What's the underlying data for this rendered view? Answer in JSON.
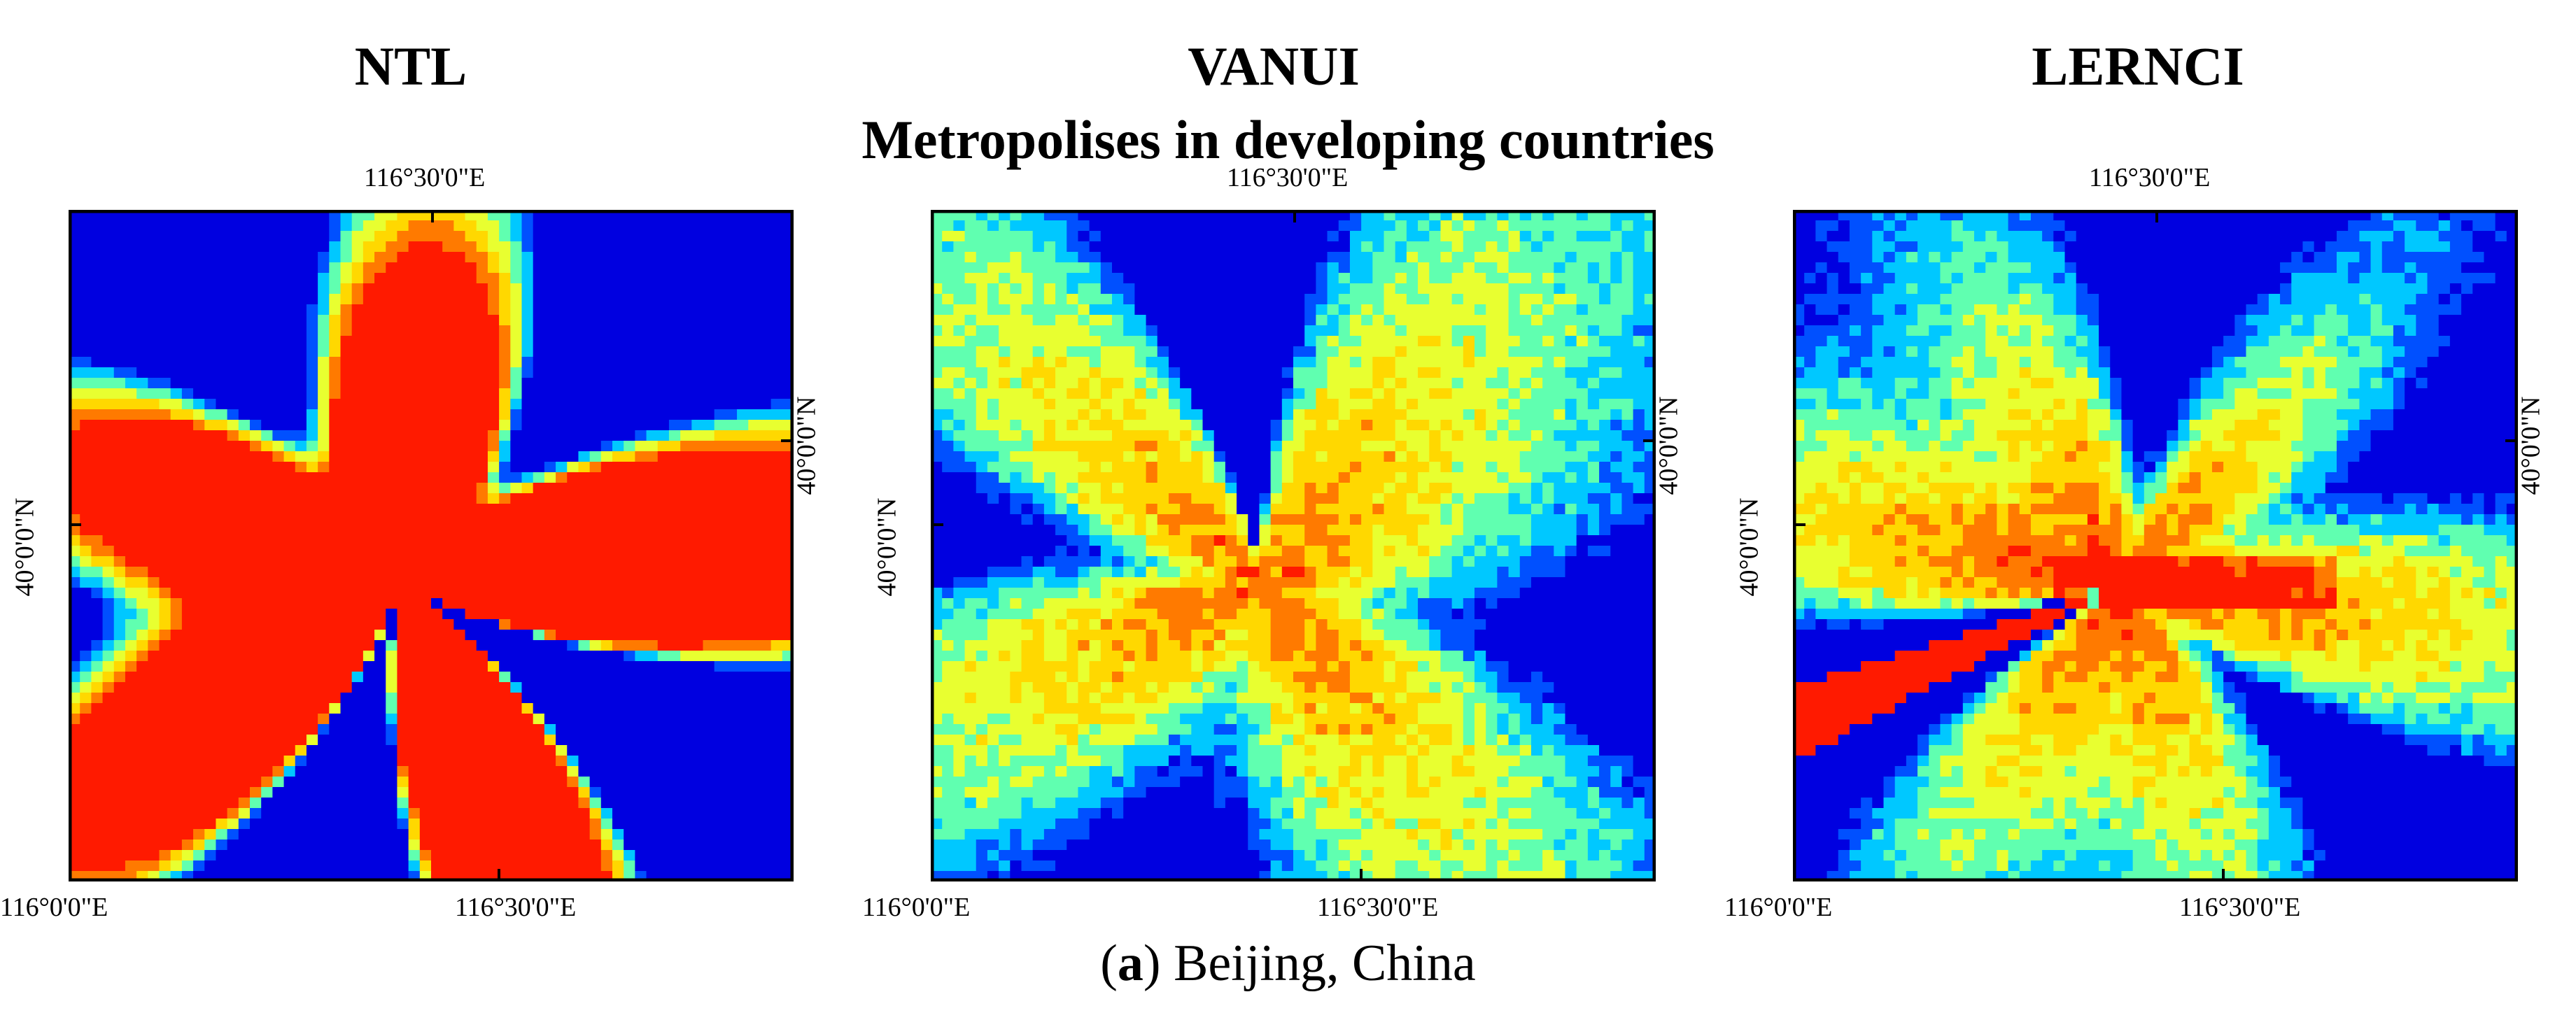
{
  "panels": [
    {
      "title": "NTL",
      "colors": {
        "core": "#ff1a00",
        "fringe": "#ffd800"
      }
    },
    {
      "title": "VANUI",
      "colors": {
        "core": "#ff7a00",
        "fringe": "#fff000"
      }
    },
    {
      "title": "LERNCI",
      "colors": {
        "core": "#ff4a00",
        "fringe": "#e8ff30"
      }
    }
  ],
  "group_title": "Metropolises in developing countries",
  "axis_labels": {
    "top_lon": "116°30'0\"E",
    "bottom_lon_left": "116°0'0\"E",
    "bottom_lon_mid": "116°30'0\"E",
    "left_lat": "40°0'0\"N",
    "right_lat": "40°0'0\"N"
  },
  "caption": {
    "letter": "a",
    "text": ") Beijing, China",
    "open": "("
  },
  "colormap": [
    "#0000e0",
    "#0050ff",
    "#00c8ff",
    "#60ffb0",
    "#e8ff30",
    "#ffd800",
    "#ff7a00",
    "#ff1a00"
  ]
}
